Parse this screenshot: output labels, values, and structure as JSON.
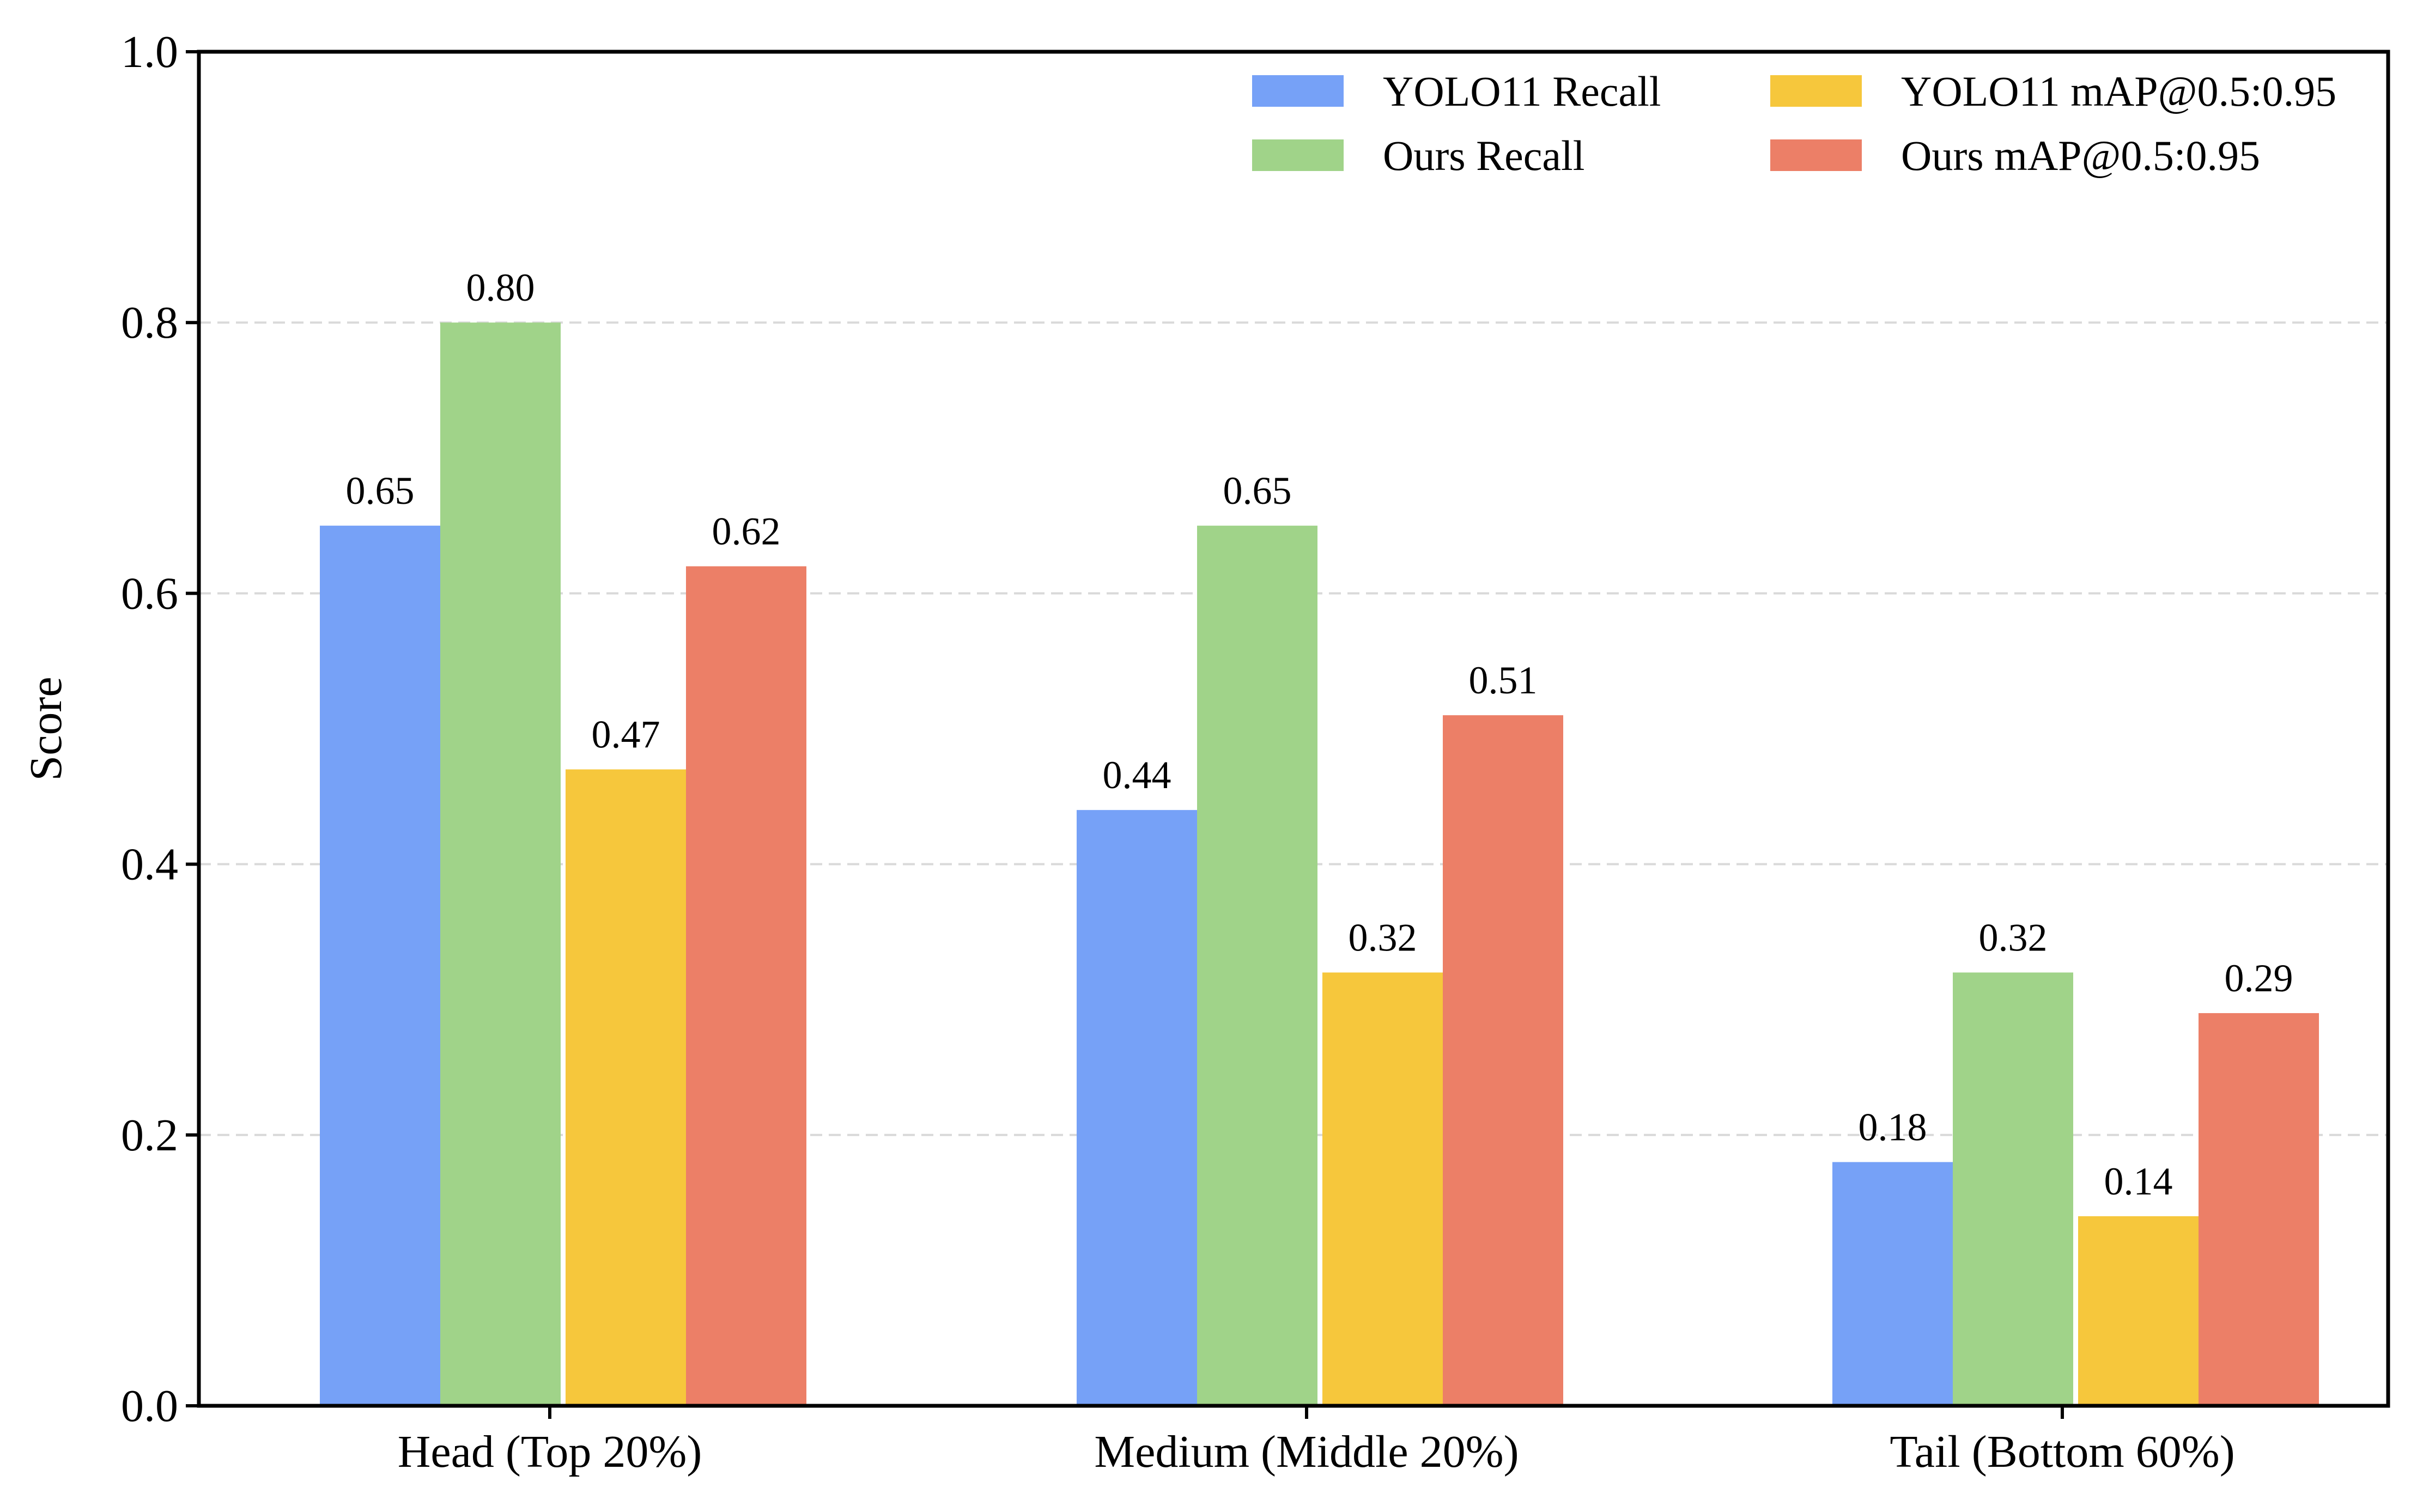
{
  "chart_data": {
    "type": "bar",
    "title": "",
    "xlabel": "",
    "ylabel": "Score",
    "ylim": [
      0,
      1.0
    ],
    "yticks": [
      "0.0",
      "0.2",
      "0.4",
      "0.6",
      "0.8",
      "1.0"
    ],
    "grid": "horizontal dashed",
    "legend_position": "top-right",
    "categories": [
      "Head (Top 20%)",
      "Medium (Middle 20%)",
      "Tail (Bottom 60%)"
    ],
    "series": [
      {
        "name": "YOLO11 Recall",
        "color": "#76a1f7",
        "values": [
          0.65,
          0.44,
          0.18
        ],
        "labels": [
          "0.65",
          "0.44",
          "0.18"
        ]
      },
      {
        "name": "Ours Recall",
        "color": "#a0d389",
        "values": [
          0.8,
          0.65,
          0.32
        ],
        "labels": [
          "0.80",
          "0.65",
          "0.32"
        ]
      },
      {
        "name": "YOLO11 mAP@0.5:0.95",
        "color": "#f6c73c",
        "values": [
          0.47,
          0.32,
          0.14
        ],
        "labels": [
          "0.47",
          "0.32",
          "0.14"
        ]
      },
      {
        "name": "Ours mAP@0.5:0.95",
        "color": "#ec7f67",
        "values": [
          0.62,
          0.51,
          0.29
        ],
        "labels": [
          "0.62",
          "0.51",
          "0.29"
        ]
      }
    ]
  }
}
